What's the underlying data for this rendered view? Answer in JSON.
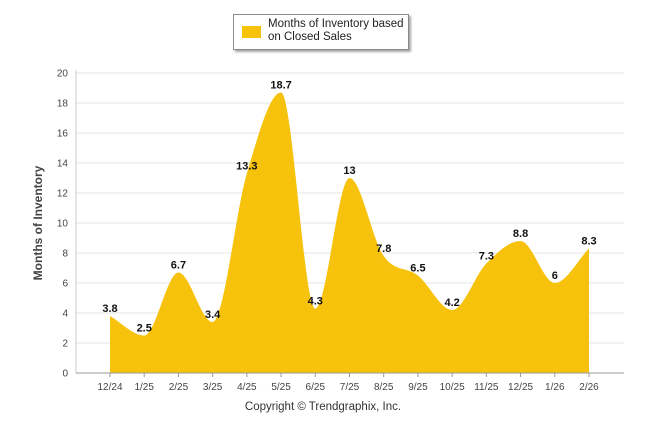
{
  "chart_data": {
    "type": "area",
    "categories": [
      "12/24",
      "1/25",
      "2/25",
      "3/25",
      "4/25",
      "5/25",
      "6/25",
      "7/25",
      "8/25",
      "9/25",
      "10/25",
      "11/25",
      "12/25",
      "1/26",
      "2/26"
    ],
    "series": [
      {
        "name": "Months of Inventory based on Closed Sales",
        "values": [
          3.8,
          2.5,
          6.7,
          3.4,
          13.3,
          18.7,
          4.3,
          13,
          7.8,
          6.5,
          4.2,
          7.3,
          8.8,
          6,
          8.3
        ],
        "labels": [
          "3.8",
          "2.5",
          "6.7",
          "3.4",
          "13.3",
          "18.7",
          "4.3",
          "13",
          "7.8",
          "6.5",
          "4.2",
          "7.3",
          "8.8",
          "6",
          "8.3"
        ],
        "color": "#F7C20C"
      }
    ],
    "ylabel": "Months of Inventory",
    "xlabel": "",
    "ylim": [
      0,
      20
    ],
    "yticks": [
      "0",
      "2",
      "4",
      "6",
      "8",
      "10",
      "12",
      "14",
      "16",
      "18",
      "20"
    ],
    "grid": true,
    "legend_position": "top-center"
  },
  "legend": {
    "line1": "Months of Inventory based",
    "line2": "on Closed Sales"
  },
  "footer": {
    "copyright": "Copyright © Trendgraphix, Inc."
  }
}
